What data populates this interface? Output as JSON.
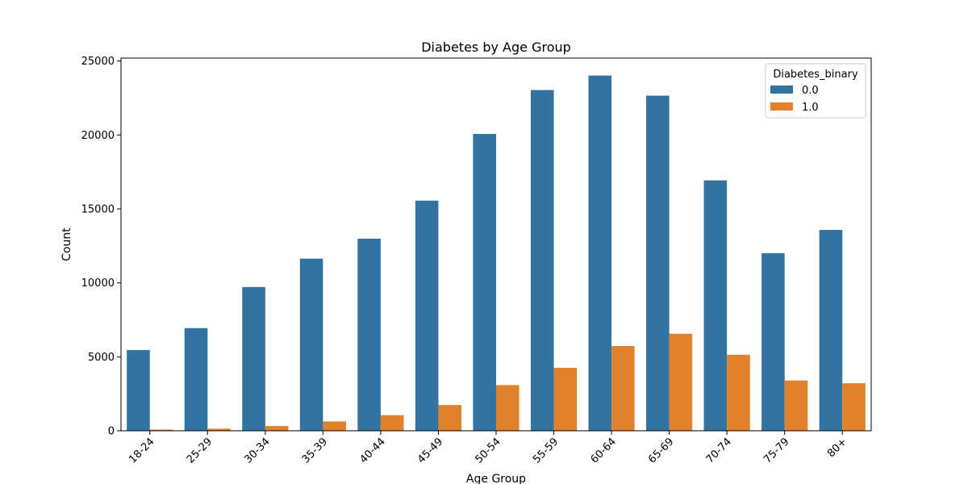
{
  "chart_data": {
    "type": "bar",
    "title": "Diabetes by Age Group",
    "xlabel": "Age Group",
    "ylabel": "Count",
    "ylim": [
      0,
      25200
    ],
    "yticks": [
      0,
      5000,
      10000,
      15000,
      20000,
      25000
    ],
    "categories": [
      "18-24",
      "25-29",
      "30-34",
      "35-39",
      "40-44",
      "45-49",
      "50-54",
      "55-59",
      "60-64",
      "65-69",
      "70-74",
      "75-79",
      "80+"
    ],
    "legend": {
      "title": "Diabetes_binary",
      "placement": "top-right"
    },
    "grid": false,
    "series": [
      {
        "name": "0.0",
        "color": "#3274a1",
        "values": [
          5460,
          6940,
          9720,
          11640,
          12990,
          15560,
          20070,
          23040,
          24020,
          22660,
          16930,
          12010,
          13580
        ]
      },
      {
        "name": "1.0",
        "color": "#e1812c",
        "values": [
          80,
          140,
          320,
          630,
          1050,
          1740,
          3090,
          4260,
          5730,
          6560,
          5140,
          3400,
          3210
        ]
      }
    ]
  }
}
